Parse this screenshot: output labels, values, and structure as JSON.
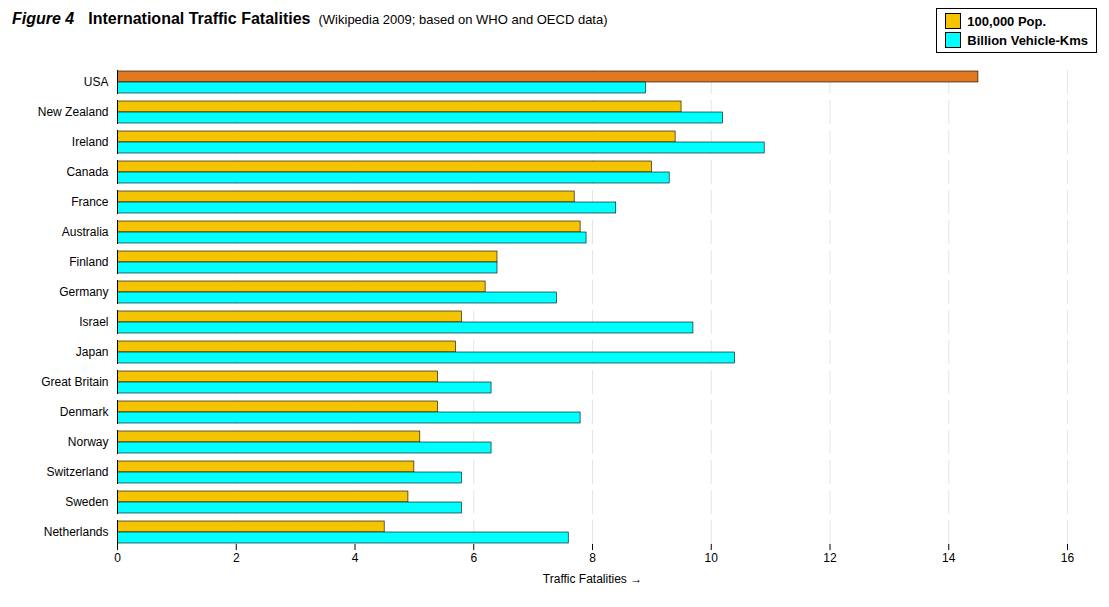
{
  "chart_data": {
    "type": "bar",
    "orientation": "horizontal",
    "title": "International Traffic Fatalities",
    "subtitle": "(Wikipedia 2009; based on WHO and OECD data)",
    "annotations": [
      "Figure 4"
    ],
    "x_label": "Traffic Fatalities",
    "categories": [
      "USA",
      "New Zealand",
      "Ireland",
      "Canada",
      "France",
      "Australia",
      "Finland",
      "Germany",
      "Israel",
      "Japan",
      "Great Britain",
      "Denmark",
      "Norway",
      "Switzerland",
      "Sweden",
      "Netherlands"
    ],
    "series": [
      {
        "name": "100,000 Pop.",
        "color": "#F5C400",
        "colors": [
          "#E07820",
          "#F5C400",
          "#F5C400",
          "#F5C400",
          "#F5C400",
          "#F5C400",
          "#F5C400",
          "#F5C400",
          "#F5C400",
          "#F5C400",
          "#F5C400",
          "#F5C400",
          "#F5C400",
          "#F5C400",
          "#F5C400",
          "#F5C400"
        ],
        "values": [
          14.5,
          9.5,
          9.4,
          9.0,
          7.7,
          7.8,
          6.4,
          6.2,
          5.8,
          5.7,
          5.4,
          5.4,
          5.1,
          5.0,
          4.9,
          4.5
        ]
      },
      {
        "name": "Billion Vehicle-Kms",
        "color": "#00FFFF",
        "values": [
          8.9,
          10.2,
          10.9,
          9.3,
          8.4,
          7.9,
          6.4,
          7.4,
          9.7,
          10.4,
          6.3,
          7.8,
          6.3,
          5.8,
          5.8,
          7.6
        ]
      }
    ],
    "xlim": [
      0,
      16
    ],
    "xticks": [
      0,
      2,
      4,
      6,
      8,
      10,
      12,
      14,
      16
    ],
    "grid": true,
    "legend": "upper right"
  }
}
